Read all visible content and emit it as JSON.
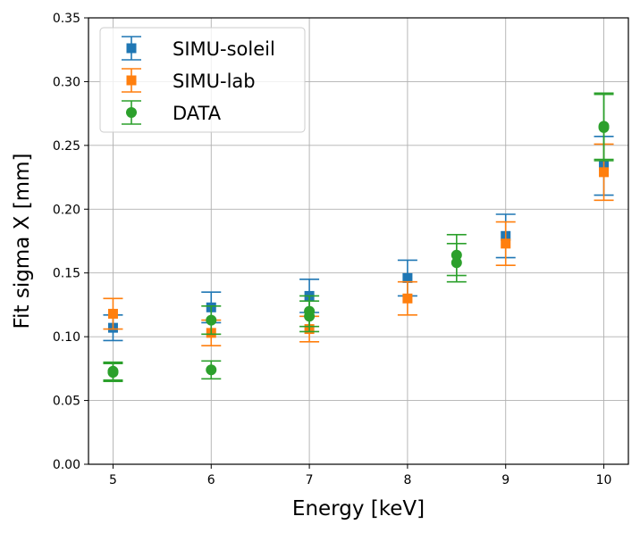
{
  "chart_data": {
    "type": "scatter",
    "xlabel": "Energy [keV]",
    "ylabel": "Fit sigma X [mm]",
    "xlim": [
      4.75,
      10.25
    ],
    "ylim": [
      0,
      0.35
    ],
    "xticks": [
      "5",
      "6",
      "7",
      "8",
      "9",
      "10"
    ],
    "xtick_values": [
      5,
      6,
      7,
      8,
      9,
      10
    ],
    "yticks": [
      "0.00",
      "0.05",
      "0.10",
      "0.15",
      "0.20",
      "0.25",
      "0.30",
      "0.35"
    ],
    "ytick_values": [
      0,
      0.05,
      0.1,
      0.15,
      0.2,
      0.25,
      0.3,
      0.35
    ],
    "grid": true,
    "legend_position": "top-left",
    "series": [
      {
        "name": "SIMU-soleil",
        "marker": "square",
        "color": "#1f77b4",
        "x": [
          5,
          6,
          7,
          8,
          9,
          10
        ],
        "y": [
          0.107,
          0.123,
          0.132,
          0.146,
          0.179,
          0.234
        ],
        "err": [
          0.01,
          0.012,
          0.013,
          0.014,
          0.017,
          0.023
        ]
      },
      {
        "name": "SIMU-lab",
        "marker": "square",
        "color": "#ff7f0e",
        "x": [
          5,
          6,
          7,
          8,
          9,
          10
        ],
        "y": [
          0.118,
          0.103,
          0.106,
          0.13,
          0.173,
          0.229
        ],
        "err": [
          0.012,
          0.01,
          0.01,
          0.013,
          0.017,
          0.022
        ]
      },
      {
        "name": "DATA",
        "marker": "circle",
        "color": "#2ca02c",
        "x": [
          5,
          5,
          6,
          6,
          7,
          7,
          8.5,
          8.5,
          10,
          10
        ],
        "y": [
          0.072,
          0.073,
          0.074,
          0.113,
          0.12,
          0.116,
          0.164,
          0.158,
          0.265,
          0.264
        ],
        "err": [
          0.007,
          0.007,
          0.007,
          0.011,
          0.012,
          0.012,
          0.016,
          0.015,
          0.026,
          0.026
        ]
      }
    ]
  }
}
